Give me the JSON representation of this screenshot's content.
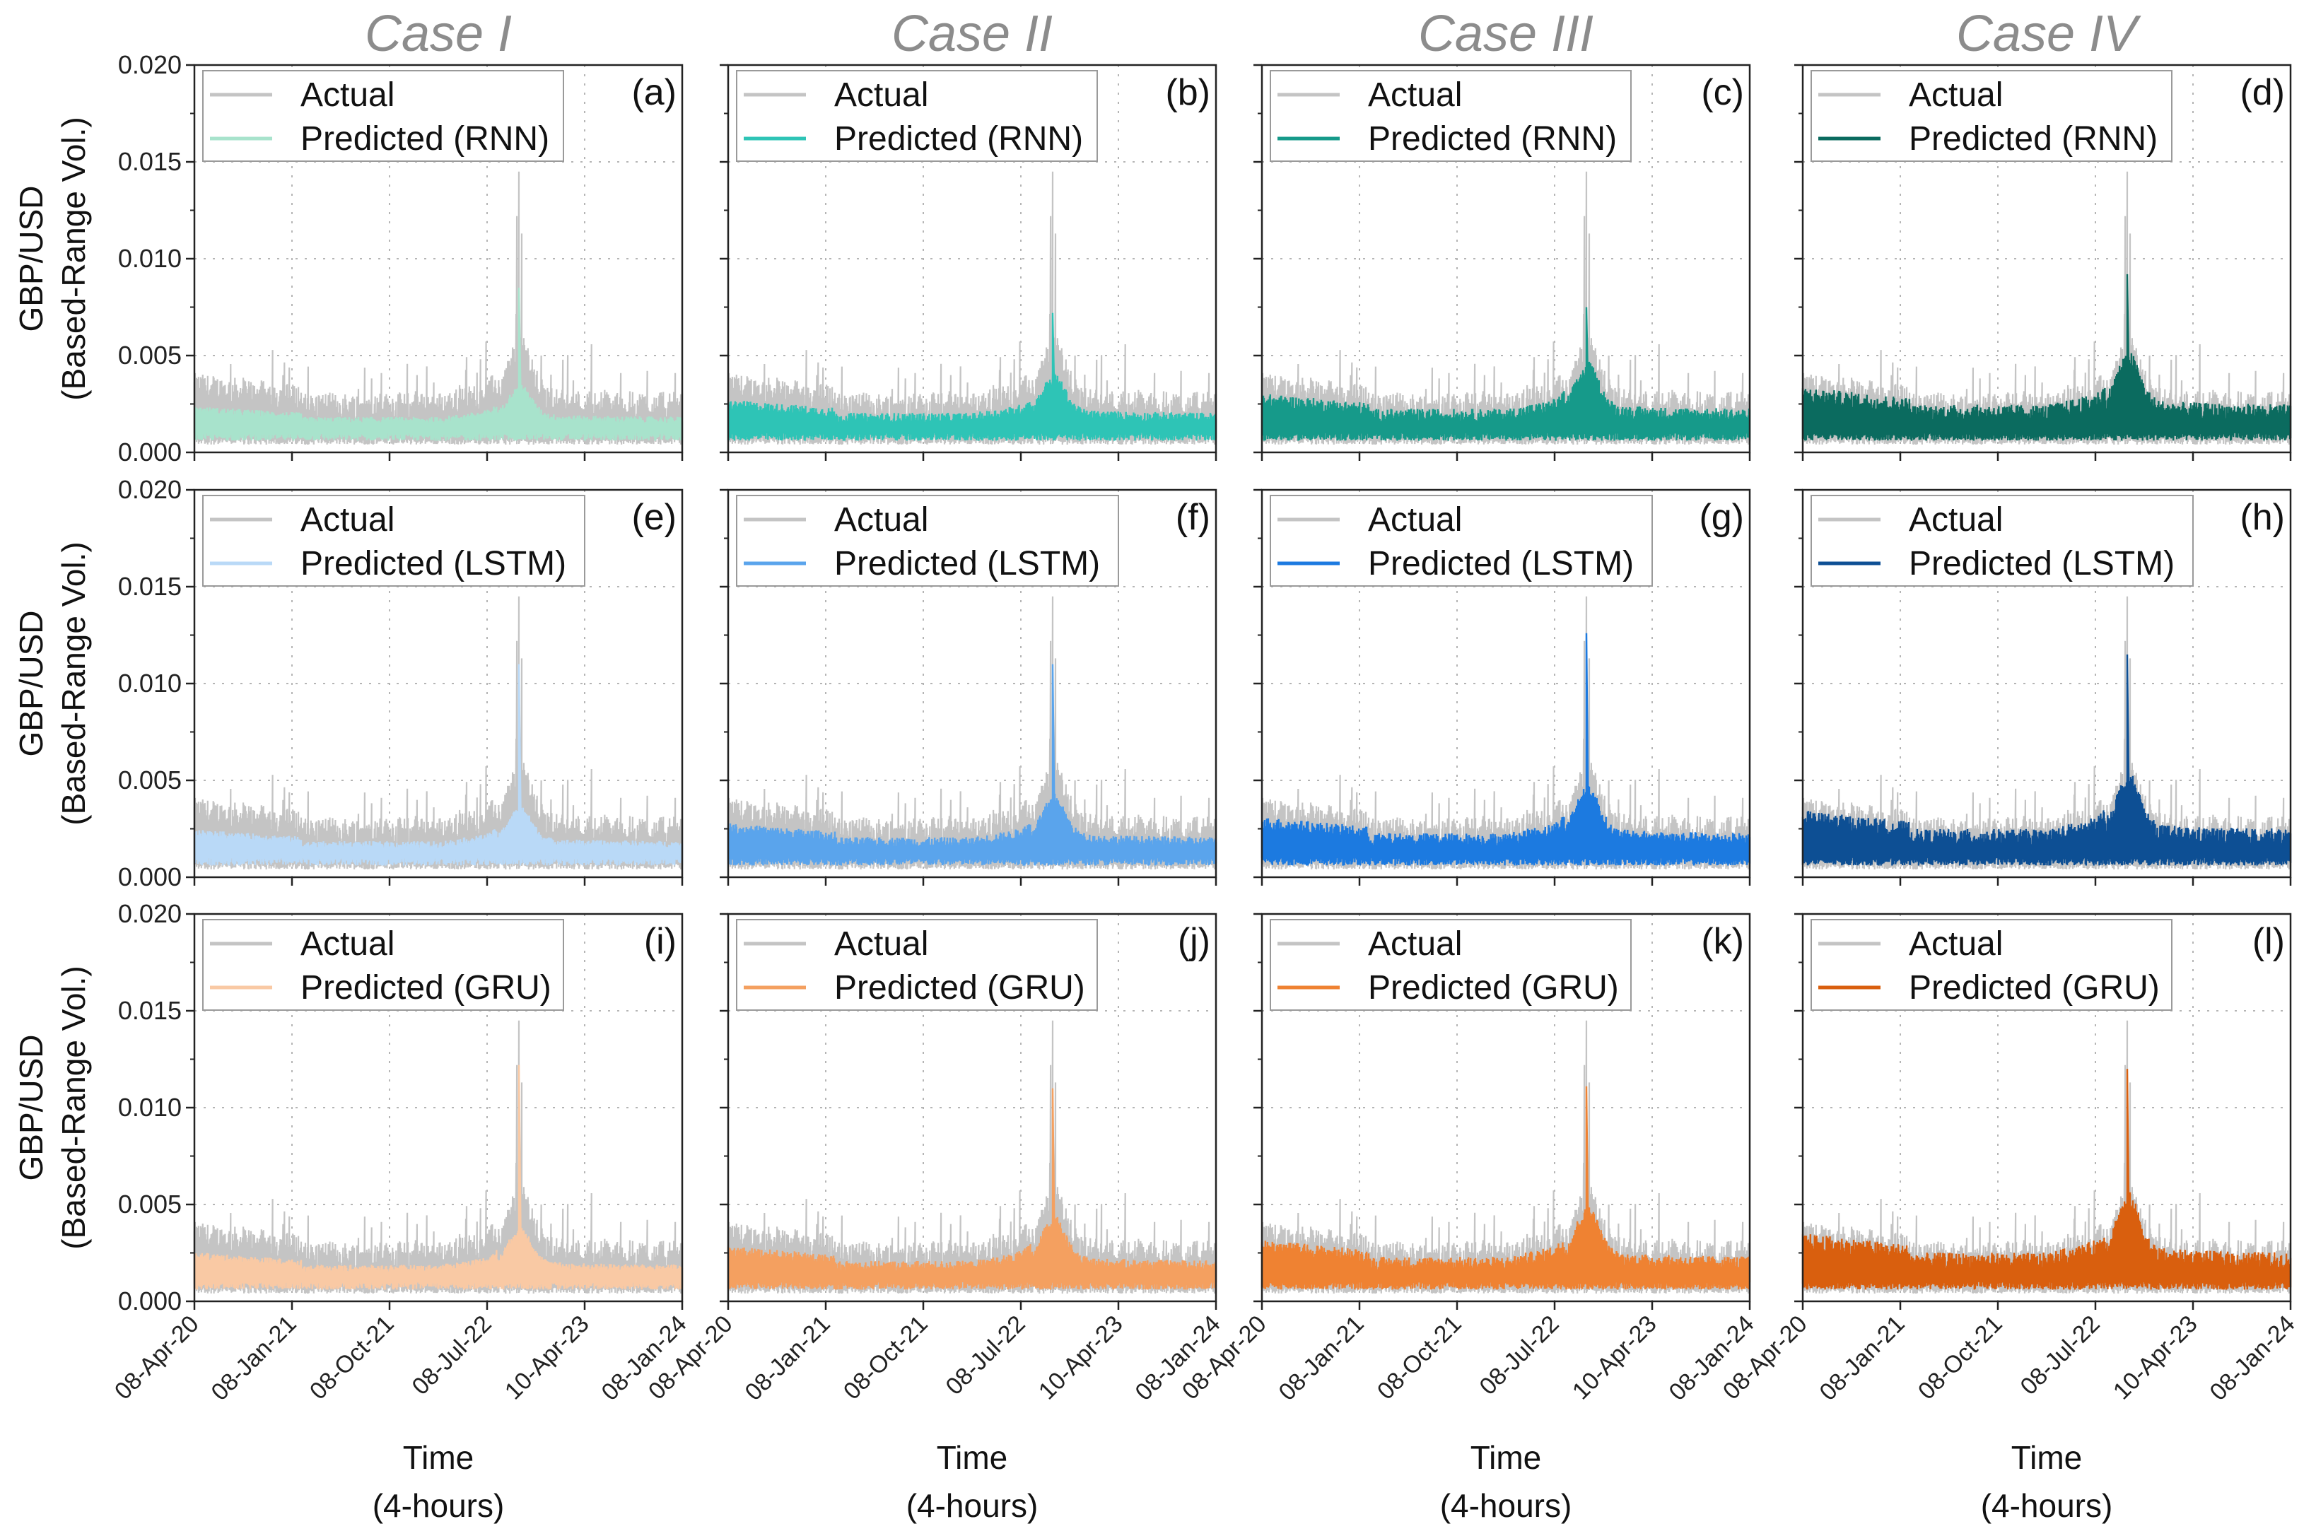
{
  "figure": {
    "case_titles": [
      "Case I",
      "Case II",
      "Case III",
      "Case IV"
    ],
    "y_title_line1": "GBP/USD",
    "y_title_line2": "(Based-Range Vol.)",
    "x_title_line1": "Time",
    "x_title_line2": "(4-hours)",
    "colors": {
      "actual": "#c4c4c4",
      "grid": "#b5b5b5",
      "axis": "#222222"
    }
  },
  "chart_data": {
    "type": "line",
    "ylim": [
      0,
      0.02
    ],
    "y_ticks": [
      "0.000",
      "0.005",
      "0.010",
      "0.015",
      "0.020"
    ],
    "x_ticks": [
      "08-Apr-20",
      "08-Jan-21",
      "08-Oct-21",
      "08-Jul-22",
      "10-Apr-23",
      "08-Jan-24"
    ],
    "grid": true,
    "legend_position": "top-left",
    "actual_label": "Actual",
    "rows": [
      {
        "model": "RNN",
        "predicted_label": "Predicted (RNN)",
        "panel_labels": [
          "(a)",
          "(b)",
          "(c)",
          "(d)"
        ],
        "colors": [
          "#a8e3cc",
          "#2ec4b6",
          "#169a8a",
          "#0b6b5f"
        ],
        "peak_predicted": [
          0.0085,
          0.0072,
          0.0075,
          0.0092
        ]
      },
      {
        "model": "LSTM",
        "predicted_label": "Predicted (LSTM)",
        "panel_labels": [
          "(e)",
          "(f)",
          "(g)",
          "(h)"
        ],
        "colors": [
          "#b9d9f7",
          "#5aa4ec",
          "#1c7ae0",
          "#0d4f94"
        ],
        "peak_predicted": [
          0.011,
          0.011,
          0.0126,
          0.0115
        ]
      },
      {
        "model": "GRU",
        "predicted_label": "Predicted (GRU)",
        "panel_labels": [
          "(i)",
          "(j)",
          "(k)",
          "(l)"
        ],
        "colors": [
          "#f9c9a4",
          "#f4a060",
          "#ef8232",
          "#d95f0e"
        ],
        "peak_predicted": [
          0.0122,
          0.011,
          0.0111,
          0.012
        ]
      }
    ],
    "actual_peak": 0.0145,
    "actual_typical_range": [
      0.0005,
      0.0045
    ]
  }
}
